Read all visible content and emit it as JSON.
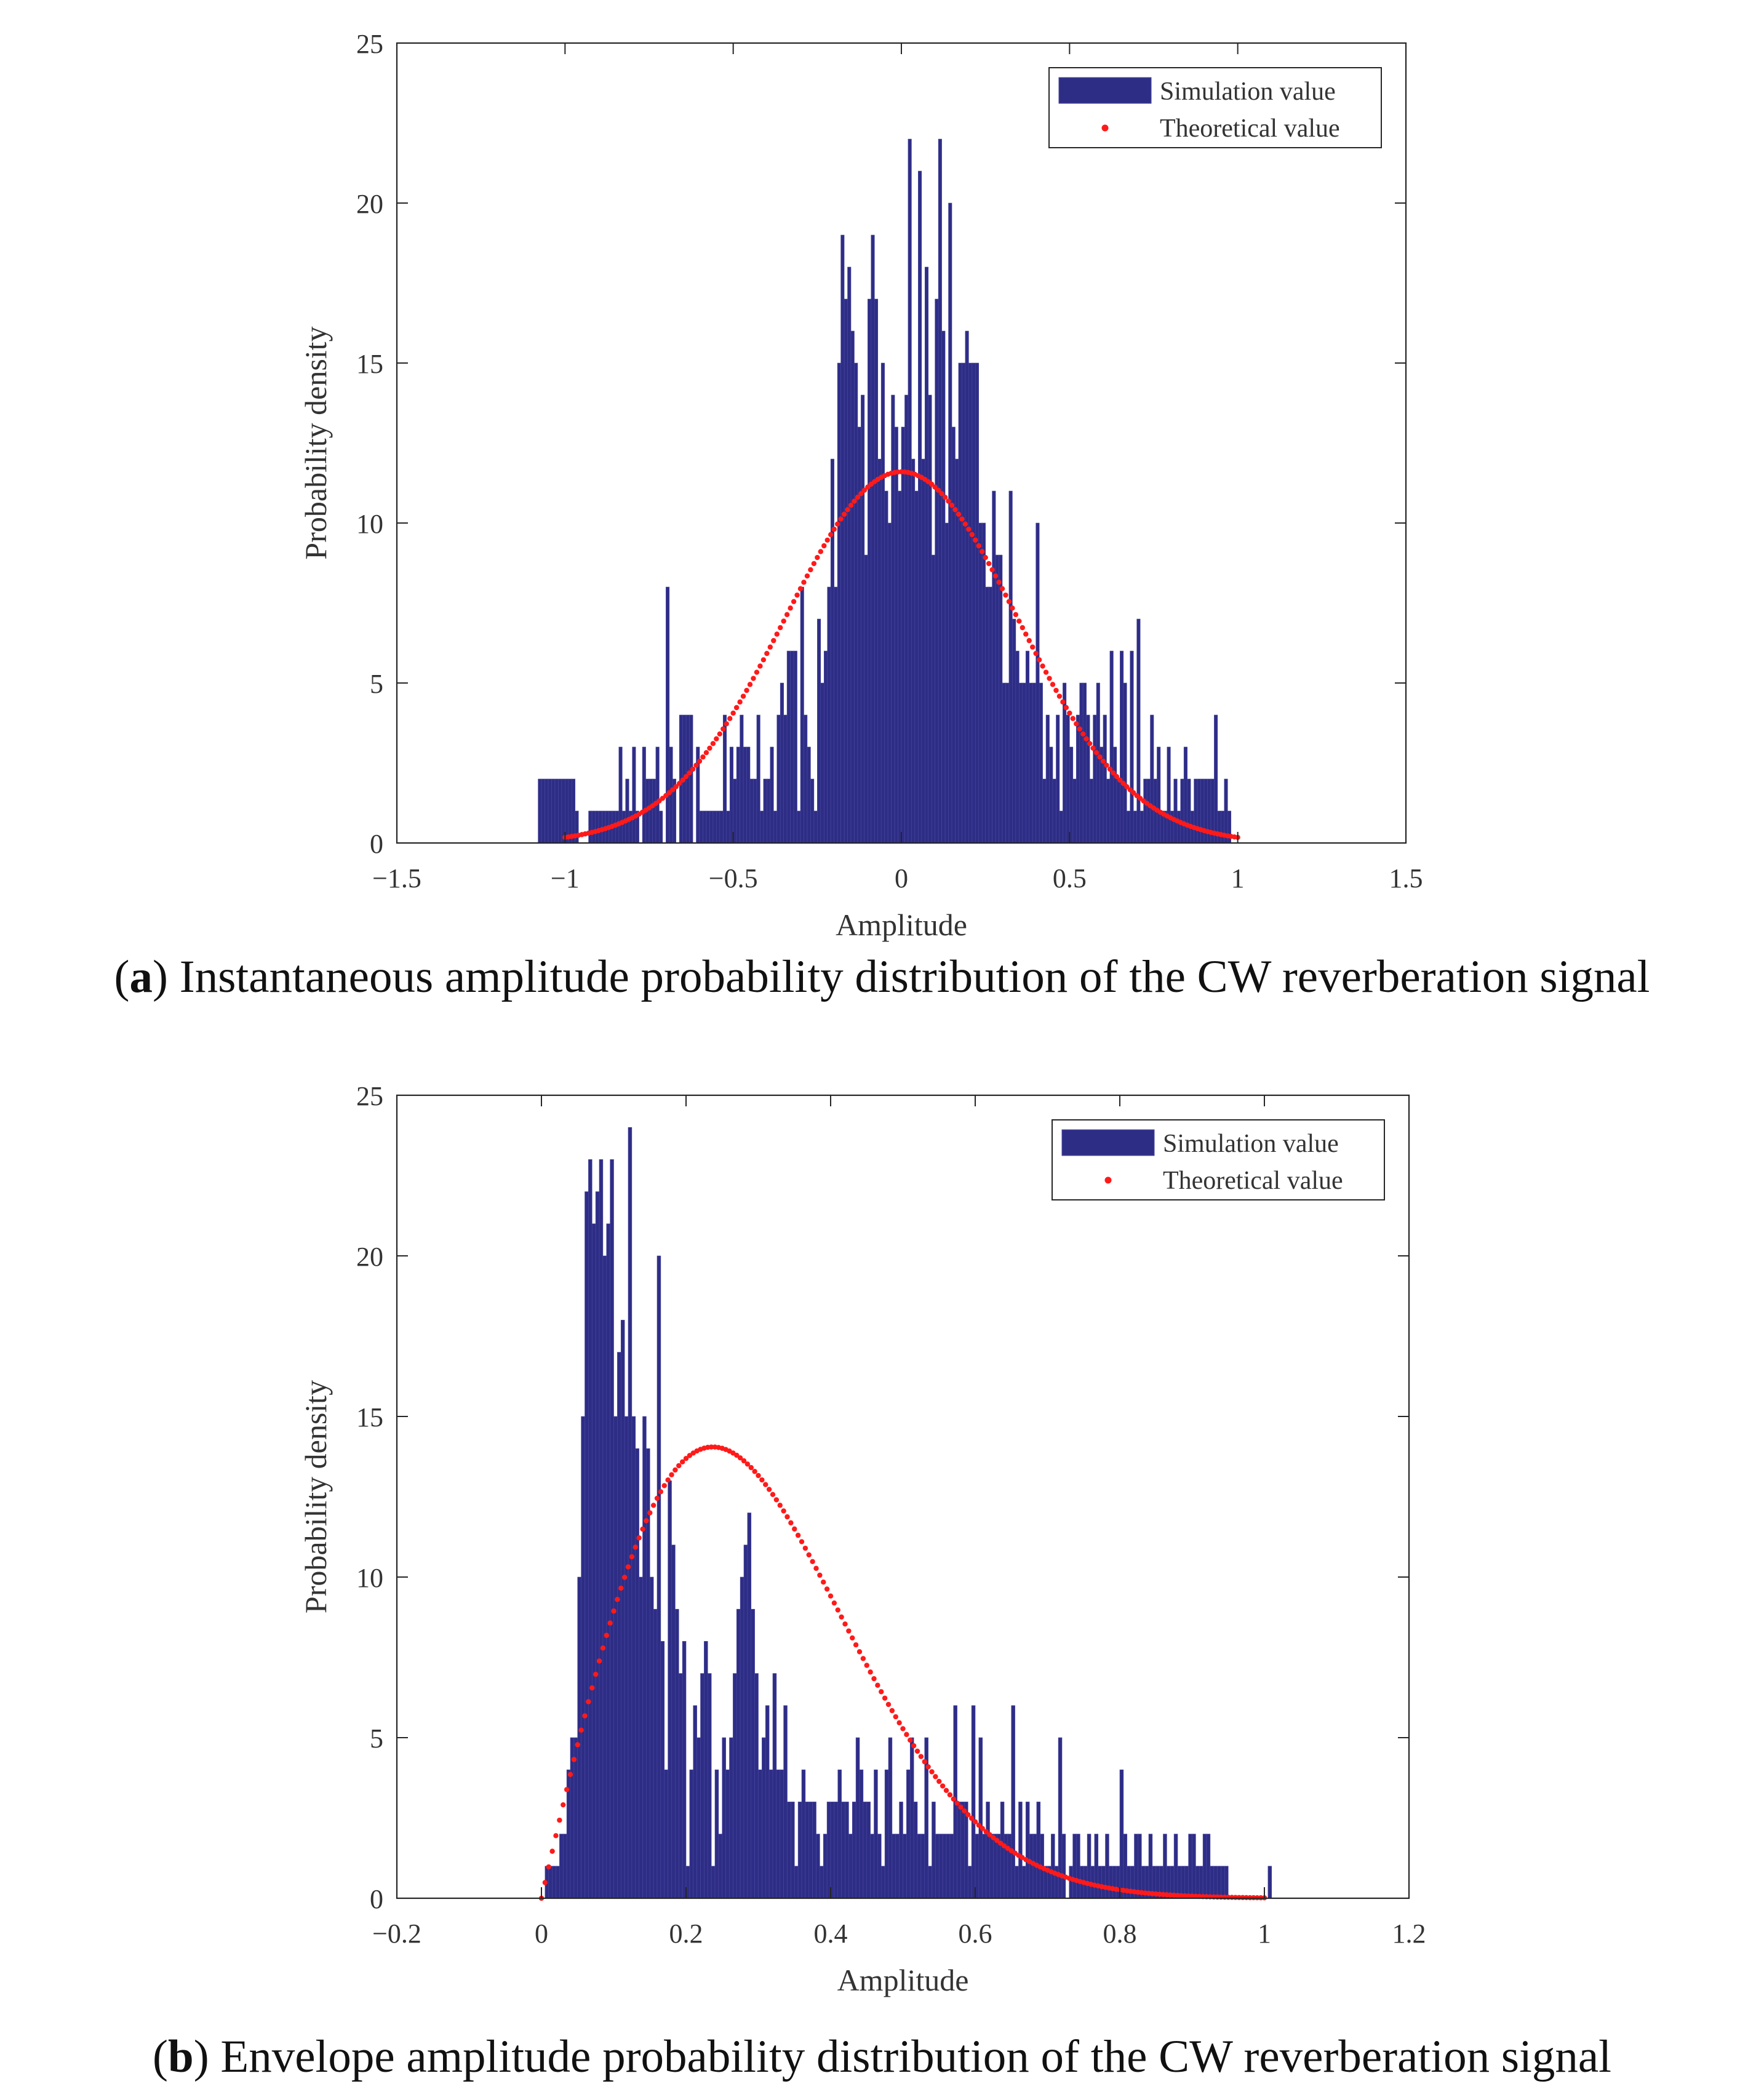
{
  "chart_data": [
    {
      "type": "bar",
      "title": "",
      "caption_letter": "a",
      "caption_text": "Instantaneous amplitude probability distribution of the CW reverberation signal",
      "xlabel": "Amplitude",
      "ylabel": "Probability density",
      "xlim": [
        -1.5,
        1.5
      ],
      "ylim": [
        0,
        25
      ],
      "xticks": [
        "-1.5",
        "-1",
        "-0.5",
        "0",
        "0.5",
        "1",
        "1.5"
      ],
      "yticks": [
        "0",
        "5",
        "10",
        "15",
        "20",
        "25"
      ],
      "legend": {
        "position": "top-right",
        "entries": [
          "Simulation value",
          "Theoretical value"
        ]
      },
      "colors": {
        "bars": "#2e2d86",
        "theory": "#ff1a1a"
      },
      "bin_start": -1.08,
      "bin_width": 0.01,
      "values": [
        2,
        2,
        2,
        2,
        2,
        2,
        2,
        2,
        2,
        2,
        2,
        1,
        0,
        0,
        0,
        1,
        1,
        1,
        1,
        1,
        1,
        1,
        1,
        1,
        3,
        1,
        2,
        1,
        3,
        1,
        0,
        3,
        2,
        2,
        2,
        3,
        1,
        0,
        8,
        3,
        2,
        0,
        4,
        4,
        4,
        4,
        0,
        3,
        1,
        1,
        1,
        1,
        1,
        1,
        1,
        4,
        1,
        3,
        2,
        3,
        4,
        3,
        3,
        2,
        2,
        4,
        1,
        2,
        2,
        3,
        1,
        4,
        5,
        4,
        6,
        6,
        6,
        1,
        8,
        4,
        3,
        2,
        1,
        7,
        5,
        6,
        8,
        12,
        8,
        15,
        19,
        17,
        18,
        16,
        15,
        13,
        14,
        9,
        17,
        19,
        17,
        12,
        15,
        11,
        10,
        14,
        13,
        11,
        13,
        14,
        22,
        12,
        11,
        21,
        12,
        18,
        14,
        9,
        17,
        22,
        16,
        10,
        20,
        13,
        12,
        15,
        15,
        16,
        15,
        15,
        15,
        10,
        10,
        8,
        8,
        11,
        9,
        9,
        5,
        5,
        11,
        7,
        6,
        5,
        5,
        6,
        5,
        5,
        10,
        5,
        2,
        4,
        3,
        2,
        4,
        1,
        5,
        4,
        3,
        2,
        4,
        5,
        5,
        4,
        2,
        4,
        5,
        3,
        4,
        2,
        6,
        3,
        2,
        6,
        5,
        1,
        6,
        1,
        7,
        1,
        2,
        2,
        4,
        2,
        3,
        1,
        1,
        3,
        1,
        2,
        1,
        2,
        3,
        2,
        1,
        2,
        2,
        2,
        2,
        2,
        2,
        4,
        1,
        1,
        2,
        1
      ],
      "theory": {
        "kind": "gaussian",
        "mean": 0.0,
        "sigma": 0.345,
        "peak": 11.6,
        "x_from": -1.0,
        "x_to": 1.0,
        "step": 0.01
      }
    },
    {
      "type": "bar",
      "title": "",
      "caption_letter": "b",
      "caption_text": "Envelope amplitude probability distribution of the CW reverberation signal",
      "xlabel": "Amplitude",
      "ylabel": "Probability density",
      "xlim": [
        -0.2,
        1.2
      ],
      "ylim": [
        0,
        25
      ],
      "xticks": [
        "-0.2",
        "0",
        "0.2",
        "0.4",
        "0.6",
        "0.8",
        "1",
        "1.2"
      ],
      "yticks": [
        "0",
        "5",
        "10",
        "15",
        "20",
        "25"
      ],
      "legend": {
        "position": "top-right",
        "entries": [
          "Simulation value",
          "Theoretical value"
        ]
      },
      "colors": {
        "bars": "#2e2d86",
        "theory": "#ff1a1a"
      },
      "bin_start": 0.0,
      "bin_width": 0.005,
      "values": [
        0,
        1,
        1,
        1,
        1,
        2,
        2,
        4,
        5,
        5,
        10,
        15,
        22,
        23,
        21,
        22,
        23,
        20,
        21,
        23,
        15,
        17,
        18,
        15,
        24,
        15,
        14,
        10,
        15,
        14,
        10,
        9,
        20,
        8,
        4,
        13,
        11,
        9,
        7,
        8,
        1,
        4,
        6,
        5,
        7,
        8,
        7,
        1,
        4,
        2,
        5,
        4,
        5,
        7,
        9,
        10,
        11,
        12,
        9,
        7,
        4,
        5,
        6,
        4,
        7,
        4,
        4,
        6,
        3,
        3,
        1,
        3,
        4,
        3,
        3,
        3,
        2,
        1,
        2,
        3,
        3,
        3,
        4,
        3,
        3,
        2,
        3,
        5,
        4,
        3,
        3,
        2,
        4,
        2,
        1,
        4,
        5,
        2,
        2,
        3,
        2,
        4,
        5,
        3,
        2,
        2,
        5,
        1,
        3,
        2,
        2,
        2,
        2,
        2,
        6,
        3,
        3,
        3,
        1,
        6,
        2,
        5,
        2,
        3,
        2,
        2,
        2,
        3,
        2,
        2,
        6,
        1,
        3,
        1,
        3,
        2,
        2,
        3,
        2,
        1,
        1,
        2,
        1,
        5,
        2,
        0,
        1,
        2,
        2,
        1,
        1,
        2,
        1,
        2,
        1,
        1,
        2,
        1,
        1,
        1,
        4,
        2,
        1,
        1,
        2,
        2,
        1,
        1,
        2,
        1,
        1,
        1,
        2,
        1,
        1,
        2,
        1,
        1,
        1,
        2,
        2,
        1,
        1,
        2,
        2,
        1,
        1,
        1,
        1,
        1,
        0,
        0,
        0,
        0,
        0,
        0,
        0,
        0,
        0,
        0,
        0,
        1
      ],
      "theory": {
        "kind": "rayleigh",
        "sigma": 0.237,
        "peak": 14.05,
        "x_from": 0.0,
        "x_to": 1.0,
        "step": 0.005
      }
    }
  ]
}
